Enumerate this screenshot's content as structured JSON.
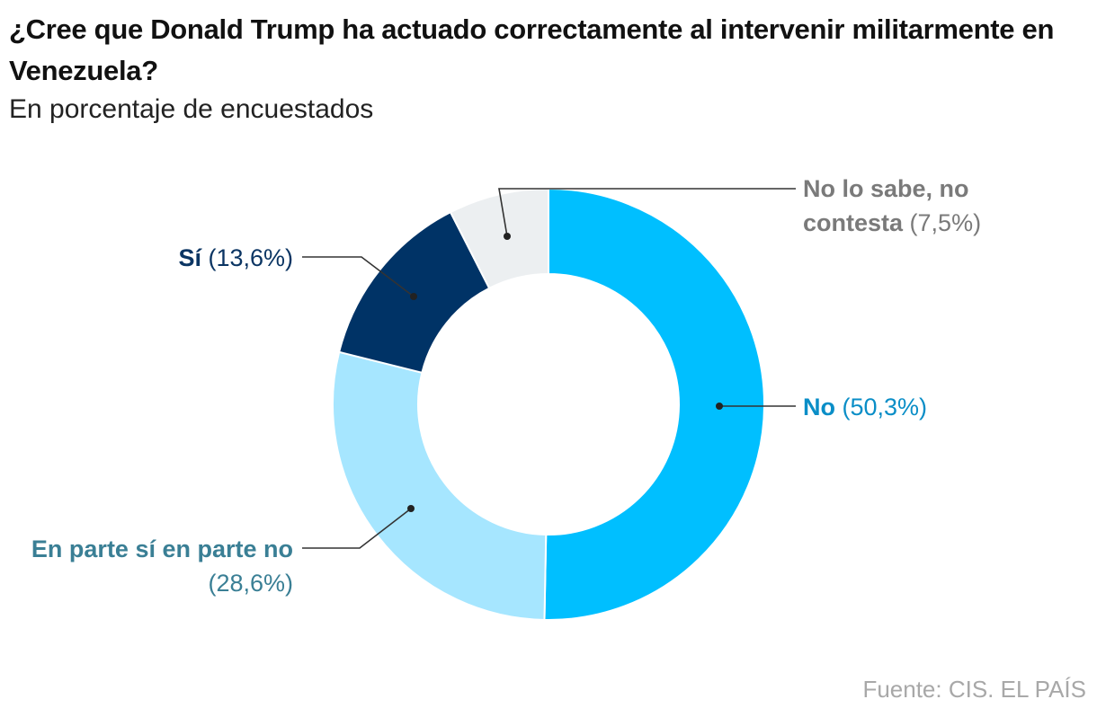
{
  "header": {
    "title": "¿Cree que Donald Trump ha actuado correctamente al intervenir militarmente en Venezuela?",
    "subtitle": "En porcentaje de encuestados"
  },
  "source": "Fuente: CIS. EL PAÍS",
  "chart_data": {
    "type": "pie",
    "donut": true,
    "title": "¿Cree que Donald Trump ha actuado correctamente al intervenir militarmente en Venezuela?",
    "subtitle": "En porcentaje de encuestados",
    "legend": "none",
    "series": [
      {
        "name": "No",
        "value": 50.3,
        "value_label": "(50,3%)",
        "color": "#00bfff",
        "label_color": "#0a8ec7"
      },
      {
        "name": "En parte sí en parte no",
        "value": 28.6,
        "value_label": "(28,6%)",
        "color": "#a6e6ff",
        "label_color": "#3a7f95"
      },
      {
        "name": "Sí",
        "value": 13.6,
        "value_label": "(13,6%)",
        "color": "#003366",
        "label_color": "#0b3563"
      },
      {
        "name": "No lo sabe, no contesta",
        "value": 7.5,
        "value_label": "(7,5%)",
        "color": "#eceff1",
        "label_color": "#7a7a7a"
      }
    ]
  }
}
